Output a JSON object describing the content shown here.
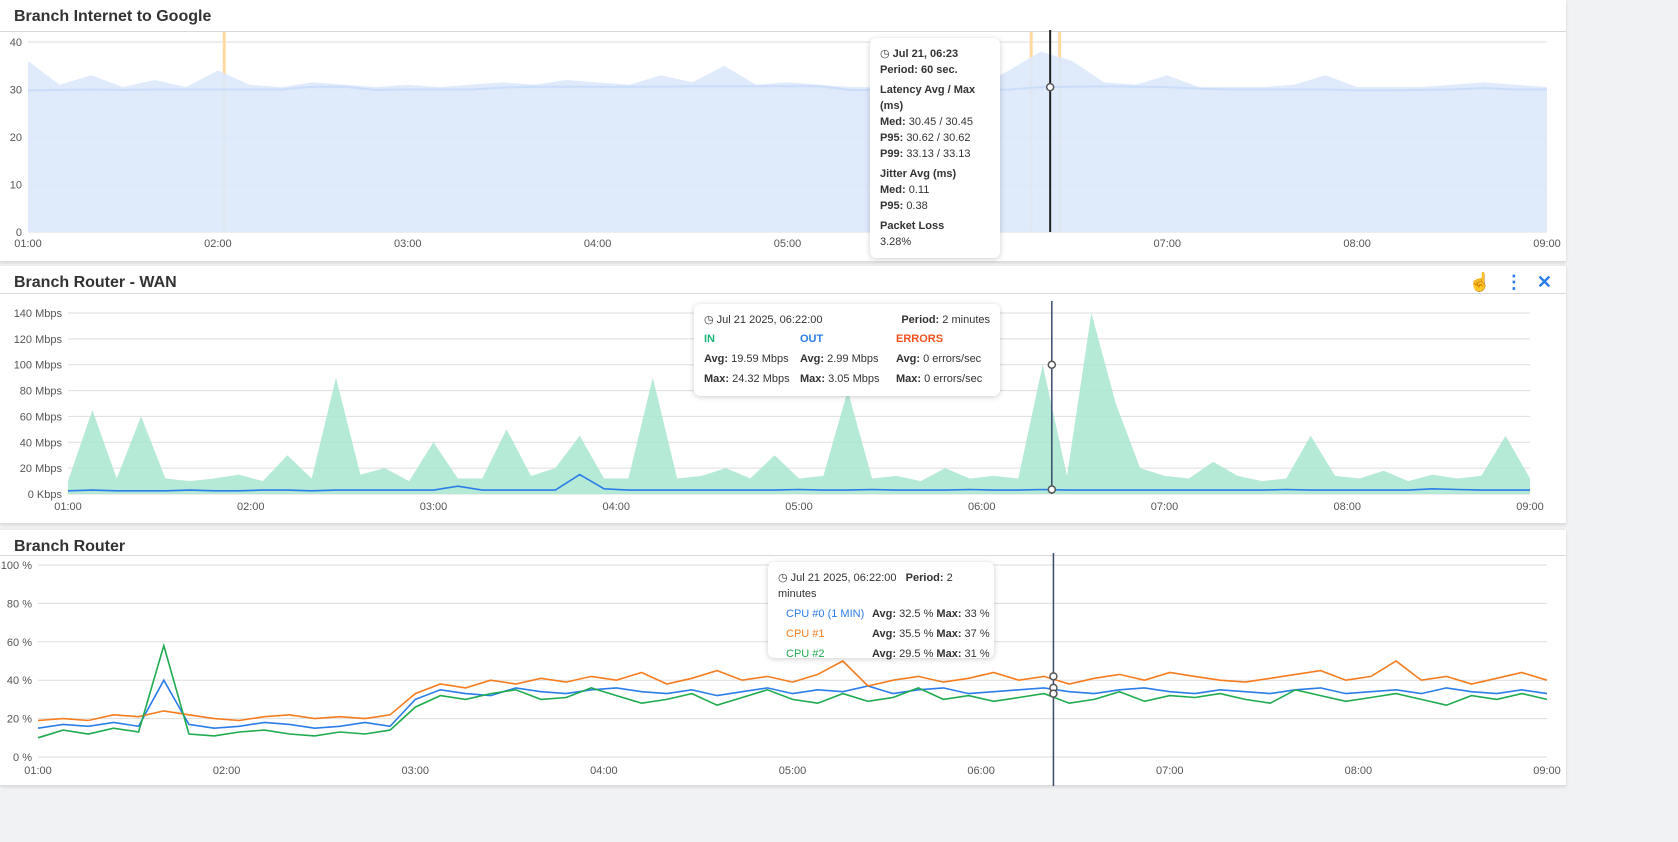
{
  "panels": [
    {
      "title": "Branch Internet to Google",
      "chart_data": {
        "type": "area",
        "x_ticks": [
          "01:00",
          "02:00",
          "03:00",
          "04:00",
          "05:00",
          "06:00",
          "07:00",
          "08:00",
          "09:00"
        ],
        "y_ticks": [
          "0",
          "10",
          "20",
          "30",
          "40"
        ],
        "ylim": [
          0,
          44
        ],
        "x_range": [
          "01:00",
          "09:00"
        ],
        "grid": true,
        "series": [
          {
            "role": "avg",
            "color": "#2b7de9",
            "values": [
              29.8,
              29.9,
              30,
              29.9,
              30,
              30,
              30,
              30,
              30,
              30.6,
              30.6,
              29.9,
              30,
              30,
              30,
              30.4,
              30.6,
              30.6,
              30.6,
              30.6,
              30.6,
              30.7,
              30.7,
              30.7,
              30.7,
              30.7,
              29.9,
              29.8,
              29.8,
              29.8,
              29.8,
              30,
              30.5,
              30.6,
              30.7,
              30.6,
              30.5,
              30.2,
              30,
              30,
              30,
              30,
              29.8,
              29.8,
              29.9,
              30,
              30.3,
              30,
              30
            ]
          },
          {
            "role": "max",
            "color": "#dce8fb",
            "values": [
              36,
              31,
              33,
              30.5,
              32,
              30.5,
              34,
              31,
              30.5,
              31.5,
              31,
              30.5,
              31,
              30.5,
              31,
              31.5,
              31,
              32,
              31.5,
              31,
              33,
              31.5,
              35,
              31,
              31.5,
              31,
              30.5,
              30.5,
              30.5,
              30.5,
              30.5,
              34,
              38,
              36,
              31.5,
              31,
              33,
              30.5,
              30.5,
              30.5,
              31,
              33,
              30.5,
              30.5,
              30.5,
              31,
              31.5,
              31,
              30.5
            ]
          }
        ],
        "events": [
          {
            "time": "02:02",
            "color": "#ffd9a0"
          },
          {
            "time": "06:17",
            "color": "#ffd9a0"
          },
          {
            "time": "06:26",
            "color": "#ffd9a0"
          }
        ],
        "cursor": "06:23"
      },
      "tooltip": {
        "time": "Jul 21, 06:23",
        "period_label": "Period:",
        "period": "60 sec.",
        "latency_title": "Latency Avg / Max (ms)",
        "latency": [
          {
            "k": "Med:",
            "v": "30.45 / 30.45"
          },
          {
            "k": "P95:",
            "v": "30.62 / 30.62"
          },
          {
            "k": "P99:",
            "v": "33.13 / 33.13"
          }
        ],
        "jitter_title": "Jitter Avg (ms)",
        "jitter": [
          {
            "k": "Med:",
            "v": "0.11"
          },
          {
            "k": "P95:",
            "v": "0.38"
          }
        ],
        "loss_title": "Packet Loss",
        "loss": "3.28%"
      }
    },
    {
      "title": "Branch Router - WAN",
      "chart_data": {
        "type": "area",
        "x_ticks": [
          "01:00",
          "02:00",
          "03:00",
          "04:00",
          "05:00",
          "06:00",
          "07:00",
          "08:00",
          "09:00"
        ],
        "y_ticks": [
          "0 Kbps",
          "20 Mbps",
          "40 Mbps",
          "60 Mbps",
          "80 Mbps",
          "100 Mbps",
          "120 Mbps",
          "140 Mbps"
        ],
        "ylim": [
          0,
          145
        ],
        "x_range": [
          "01:00",
          "09:00"
        ],
        "grid": true,
        "series": [
          {
            "name": "IN",
            "color": "#a8e6cf",
            "values": [
              10,
              65,
              12,
              60,
              12,
              10,
              12,
              15,
              10,
              30,
              12,
              90,
              15,
              20,
              10,
              40,
              12,
              12,
              50,
              14,
              20,
              45,
              12,
              12,
              90,
              12,
              14,
              20,
              12,
              30,
              12,
              14,
              80,
              12,
              14,
              10,
              20,
              12,
              14,
              12,
              100,
              14,
              140,
              70,
              20,
              14,
              12,
              25,
              14,
              10,
              12,
              45,
              14,
              12,
              18,
              10,
              15,
              12,
              14,
              45,
              12
            ]
          },
          {
            "name": "OUT",
            "color": "#2b7de9",
            "values": [
              2.5,
              3,
              2.5,
              2.5,
              2.5,
              3,
              2.5,
              2.5,
              3,
              3,
              2.5,
              3,
              3,
              3,
              3,
              3,
              6,
              3,
              3,
              3,
              3,
              15,
              4,
              3,
              3,
              3,
              3,
              3,
              3,
              3,
              3.5,
              3,
              3,
              3.5,
              3,
              3,
              3,
              3.5,
              3,
              3,
              3.5,
              3,
              3,
              3,
              3,
              3,
              3,
              3,
              3,
              3,
              3.5,
              3,
              3,
              3,
              3,
              3,
              4,
              3.5,
              3,
              3,
              3
            ]
          }
        ],
        "cursor": "06:23"
      },
      "tools": {
        "gesture_icon": "hand-sparkle-icon",
        "menu_icon": "more-vertical-icon",
        "close_icon": "close-icon"
      },
      "tooltip": {
        "time": "Jul 21 2025, 06:22:00",
        "period_label": "Period:",
        "period": "2 minutes",
        "cols": [
          {
            "name": "IN",
            "color": "#1fb57a",
            "avg": "19.59 Mbps",
            "max": "24.32 Mbps"
          },
          {
            "name": "OUT",
            "color": "#2b7de9",
            "avg": "2.99 Mbps",
            "max": "3.05 Mbps"
          },
          {
            "name": "ERRORS",
            "color": "#f4511e",
            "avg": "0 errors/sec",
            "max": "0 errors/sec"
          }
        ],
        "avg_label": "Avg:",
        "max_label": "Max:"
      }
    },
    {
      "title": "Branch Router",
      "chart_data": {
        "type": "line",
        "x_ticks": [
          "01:00",
          "02:00",
          "03:00",
          "04:00",
          "05:00",
          "06:00",
          "07:00",
          "08:00",
          "09:00"
        ],
        "y_ticks": [
          "0 %",
          "20 %",
          "40 %",
          "60 %",
          "80 %",
          "100 %"
        ],
        "ylim": [
          0,
          100
        ],
        "x_range": [
          "01:00",
          "09:00"
        ],
        "grid": true,
        "series": [
          {
            "name": "CPU #0 (1 MIN)",
            "color": "#2b7de9",
            "values": [
              15,
              17,
              16,
              18,
              16,
              40,
              17,
              15,
              16,
              18,
              17,
              15,
              16,
              18,
              16,
              30,
              35,
              33,
              32,
              36,
              34,
              33,
              35,
              36,
              34,
              33,
              35,
              32,
              34,
              36,
              33,
              35,
              34,
              37,
              33,
              35,
              36,
              33,
              34,
              35,
              36,
              34,
              33,
              35,
              36,
              34,
              33,
              35,
              34,
              33,
              35,
              36,
              33,
              34,
              35,
              33,
              36,
              34,
              33,
              35,
              33
            ]
          },
          {
            "name": "CPU #1",
            "color": "#f57c1f",
            "values": [
              19,
              20,
              19,
              22,
              21,
              24,
              22,
              20,
              19,
              21,
              22,
              20,
              21,
              20,
              22,
              33,
              38,
              36,
              40,
              38,
              41,
              39,
              42,
              40,
              44,
              38,
              41,
              45,
              40,
              42,
              39,
              43,
              50,
              37,
              40,
              42,
              39,
              41,
              44,
              40,
              42,
              38,
              41,
              43,
              40,
              44,
              42,
              40,
              39,
              41,
              43,
              45,
              40,
              42,
              50,
              40,
              42,
              38,
              41,
              44,
              40
            ]
          },
          {
            "name": "CPU #2",
            "color": "#1fab4f",
            "values": [
              10,
              14,
              12,
              15,
              13,
              58,
              12,
              11,
              13,
              14,
              12,
              11,
              13,
              12,
              14,
              26,
              32,
              30,
              33,
              35,
              30,
              31,
              36,
              32,
              28,
              30,
              33,
              27,
              31,
              35,
              30,
              28,
              33,
              29,
              31,
              36,
              30,
              32,
              29,
              31,
              33,
              28,
              30,
              34,
              29,
              32,
              31,
              33,
              30,
              28,
              35,
              32,
              29,
              31,
              33,
              30,
              27,
              32,
              30,
              33,
              30
            ]
          }
        ],
        "cursor": "06:23"
      },
      "tooltip": {
        "time": "Jul 21 2025, 06:22:00",
        "period_label": "Period:",
        "period": "2 minutes",
        "avg_label": "Avg:",
        "max_label": "Max:",
        "rows": [
          {
            "name": "CPU #0 (1 MIN)",
            "color": "#2b7de9",
            "avg": "32.5 %",
            "max": "33 %"
          },
          {
            "name": "CPU #1",
            "color": "#f57c1f",
            "avg": "35.5 %",
            "max": "37 %"
          },
          {
            "name": "CPU #2",
            "color": "#1fab4f",
            "avg": "29.5 %",
            "max": "31 %"
          }
        ]
      }
    }
  ]
}
